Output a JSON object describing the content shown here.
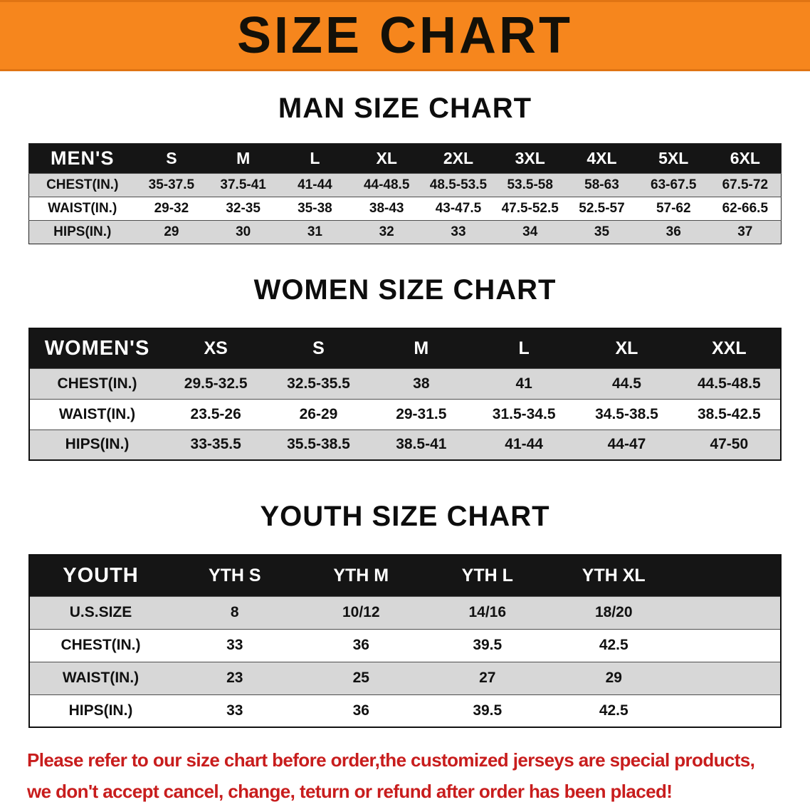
{
  "banner": {
    "title": "SIZE CHART",
    "bg_color": "#f6861d"
  },
  "colors": {
    "header_row": "#151515",
    "stripe_row": "#d7d7d7",
    "notice_text": "#c81d1d"
  },
  "sections": [
    {
      "heading": "MAN SIZE CHART",
      "table": {
        "header_label": "MEN'S",
        "columns": [
          "S",
          "M",
          "L",
          "XL",
          "2XL",
          "3XL",
          "4XL",
          "5XL",
          "6XL"
        ],
        "rows": [
          {
            "label": "CHEST(IN.)",
            "values": [
              "35-37.5",
              "37.5-41",
              "41-44",
              "44-48.5",
              "48.5-53.5",
              "53.5-58",
              "58-63",
              "63-67.5",
              "67.5-72"
            ]
          },
          {
            "label": "WAIST(IN.)",
            "values": [
              "29-32",
              "32-35",
              "35-38",
              "38-43",
              "43-47.5",
              "47.5-52.5",
              "52.5-57",
              "57-62",
              "62-66.5"
            ]
          },
          {
            "label": "HIPS(IN.)",
            "values": [
              "29",
              "30",
              "31",
              "32",
              "33",
              "34",
              "35",
              "36",
              "37"
            ]
          }
        ]
      }
    },
    {
      "heading": "WOMEN SIZE CHART",
      "table": {
        "header_label": "WOMEN'S",
        "columns": [
          "XS",
          "S",
          "M",
          "L",
          "XL",
          "XXL"
        ],
        "rows": [
          {
            "label": "CHEST(IN.)",
            "values": [
              "29.5-32.5",
              "32.5-35.5",
              "38",
              "41",
              "44.5",
              "44.5-48.5"
            ]
          },
          {
            "label": "WAIST(IN.)",
            "values": [
              "23.5-26",
              "26-29",
              "29-31.5",
              "31.5-34.5",
              "34.5-38.5",
              "38.5-42.5"
            ]
          },
          {
            "label": "HIPS(IN.)",
            "values": [
              "33-35.5",
              "35.5-38.5",
              "38.5-41",
              "41-44",
              "44-47",
              "47-50"
            ]
          }
        ]
      }
    },
    {
      "heading": "YOUTH SIZE CHART",
      "table": {
        "header_label": "YOUTH",
        "columns": [
          "YTH S",
          "YTH M",
          "YTH L",
          "YTH XL"
        ],
        "rows": [
          {
            "label": "U.S.SIZE",
            "values": [
              "8",
              "10/12",
              "14/16",
              "18/20"
            ]
          },
          {
            "label": "CHEST(IN.)",
            "values": [
              "33",
              "36",
              "39.5",
              "42.5"
            ]
          },
          {
            "label": "WAIST(IN.)",
            "values": [
              "23",
              "25",
              "27",
              "29"
            ]
          },
          {
            "label": "HIPS(IN.)",
            "values": [
              "33",
              "36",
              "39.5",
              "42.5"
            ]
          }
        ]
      }
    }
  ],
  "footer": {
    "line1": "Please refer to our size chart before order,the customized jerseys are special products,",
    "line2": "we don't accept cancel, change, teturn or refund after order has been placed!"
  }
}
